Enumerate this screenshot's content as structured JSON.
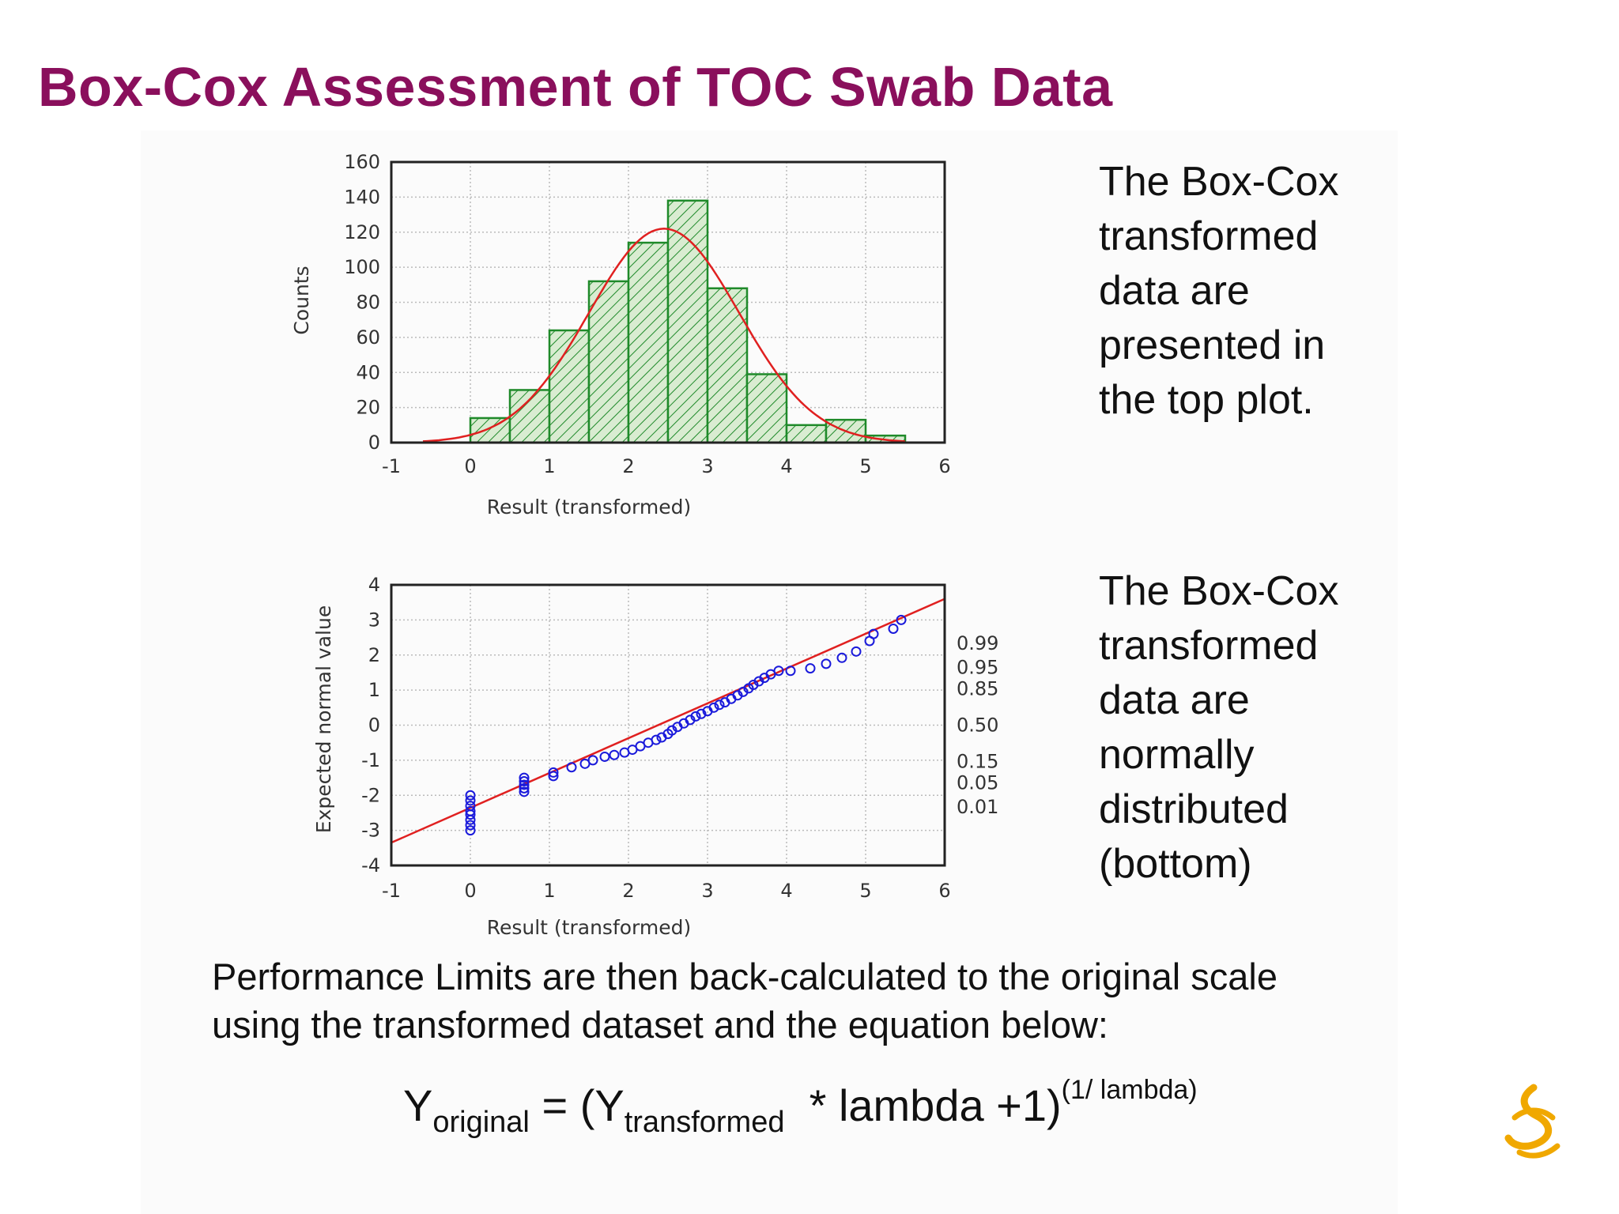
{
  "slide": {
    "title": "Box-Cox Assessment of TOC Swab Data",
    "desc_top": [
      "The Box-Cox",
      "transformed",
      "data are",
      "presented in",
      "the top plot."
    ],
    "desc_bottom": [
      "The Box-Cox",
      "transformed",
      "data are",
      "normally",
      "distributed",
      "(bottom)"
    ],
    "performance_text": [
      "Performance Limits are then back-calculated to the original scale",
      "using the transformed dataset and the equation below:"
    ],
    "equation": {
      "y": "Y",
      "sub_original": "original",
      "equals": " = (Y",
      "sub_transformed": "transformed",
      "rest": "  * lambda +1)",
      "sup": "(1/ lambda)"
    }
  },
  "colors": {
    "title": "#8a0f5c",
    "bar_fill": "#d9ecd1",
    "bar_stroke": "#1f8a2a",
    "curve": "#e02020",
    "points": "#1a1adb",
    "logo": "#f0a800"
  },
  "chart_data": [
    {
      "type": "bar",
      "title": "",
      "xlabel": "Result (transformed)",
      "ylabel": "Counts",
      "xlim": [
        -1,
        6
      ],
      "ylim": [
        0,
        160
      ],
      "xticks": [
        "-1",
        "0",
        "1",
        "2",
        "3",
        "4",
        "5",
        "6"
      ],
      "yticks": [
        "0",
        "20",
        "40",
        "60",
        "80",
        "100",
        "120",
        "140",
        "160"
      ],
      "bins": [
        {
          "from": 0.0,
          "to": 0.5,
          "count": 14
        },
        {
          "from": 0.5,
          "to": 1.0,
          "count": 30
        },
        {
          "from": 1.0,
          "to": 1.5,
          "count": 64
        },
        {
          "from": 1.5,
          "to": 2.0,
          "count": 92
        },
        {
          "from": 2.0,
          "to": 2.5,
          "count": 114
        },
        {
          "from": 2.5,
          "to": 3.0,
          "count": 138
        },
        {
          "from": 3.0,
          "to": 3.5,
          "count": 88
        },
        {
          "from": 3.5,
          "to": 4.0,
          "count": 39
        },
        {
          "from": 4.0,
          "to": 4.5,
          "count": 10
        },
        {
          "from": 4.5,
          "to": 5.0,
          "count": 13
        },
        {
          "from": 5.0,
          "to": 5.5,
          "count": 4
        }
      ],
      "fit_curve": {
        "type": "normal",
        "mean": 2.45,
        "peak": 122,
        "sd": 0.95,
        "x_from": -0.6,
        "x_to": 5.5
      },
      "grid": true
    },
    {
      "type": "scatter",
      "title": "",
      "xlabel": "Result (transformed)",
      "ylabel": "Expected normal value",
      "xlim": [
        -1,
        6
      ],
      "ylim": [
        -4,
        4
      ],
      "xticks": [
        "-1",
        "0",
        "1",
        "2",
        "3",
        "4",
        "5",
        "6"
      ],
      "yticks": [
        "-4",
        "-3",
        "-2",
        "-1",
        "0",
        "1",
        "2",
        "3",
        "4"
      ],
      "right_axis_labels": [
        {
          "label": "0.99",
          "y": 2.33
        },
        {
          "label": "0.95",
          "y": 1.645
        },
        {
          "label": "0.85",
          "y": 1.04
        },
        {
          "label": "0.50",
          "y": 0
        },
        {
          "label": "0.15",
          "y": -1.04
        },
        {
          "label": "0.05",
          "y": -1.645
        },
        {
          "label": "0.01",
          "y": -2.33
        }
      ],
      "fit_line": {
        "x1": -1,
        "y1": -3.35,
        "x2": 6,
        "y2": 3.6
      },
      "points": [
        [
          0,
          -2.0
        ],
        [
          0,
          -2.15
        ],
        [
          0,
          -2.3
        ],
        [
          0,
          -2.45
        ],
        [
          0,
          -2.55
        ],
        [
          0,
          -2.7
        ],
        [
          0,
          -2.85
        ],
        [
          0,
          -3.0
        ],
        [
          0.68,
          -1.5
        ],
        [
          0.68,
          -1.6
        ],
        [
          0.68,
          -1.7
        ],
        [
          0.68,
          -1.8
        ],
        [
          0.68,
          -1.9
        ],
        [
          1.05,
          -1.35
        ],
        [
          1.05,
          -1.45
        ],
        [
          1.28,
          -1.2
        ],
        [
          1.45,
          -1.1
        ],
        [
          1.55,
          -1.0
        ],
        [
          1.7,
          -0.9
        ],
        [
          1.82,
          -0.85
        ],
        [
          1.95,
          -0.78
        ],
        [
          2.05,
          -0.7
        ],
        [
          2.15,
          -0.6
        ],
        [
          2.25,
          -0.5
        ],
        [
          2.35,
          -0.42
        ],
        [
          2.42,
          -0.35
        ],
        [
          2.5,
          -0.25
        ],
        [
          2.55,
          -0.15
        ],
        [
          2.62,
          -0.05
        ],
        [
          2.7,
          0.05
        ],
        [
          2.78,
          0.15
        ],
        [
          2.85,
          0.25
        ],
        [
          2.92,
          0.32
        ],
        [
          3.0,
          0.4
        ],
        [
          3.08,
          0.5
        ],
        [
          3.15,
          0.58
        ],
        [
          3.22,
          0.65
        ],
        [
          3.3,
          0.75
        ],
        [
          3.38,
          0.85
        ],
        [
          3.45,
          0.95
        ],
        [
          3.52,
          1.05
        ],
        [
          3.58,
          1.15
        ],
        [
          3.65,
          1.25
        ],
        [
          3.72,
          1.35
        ],
        [
          3.8,
          1.45
        ],
        [
          3.9,
          1.55
        ],
        [
          4.05,
          1.55
        ],
        [
          4.3,
          1.62
        ],
        [
          4.5,
          1.75
        ],
        [
          4.7,
          1.92
        ],
        [
          4.88,
          2.1
        ],
        [
          5.05,
          2.4
        ],
        [
          5.1,
          2.6
        ],
        [
          5.35,
          2.75
        ],
        [
          5.45,
          3.0
        ]
      ],
      "grid": true
    }
  ]
}
